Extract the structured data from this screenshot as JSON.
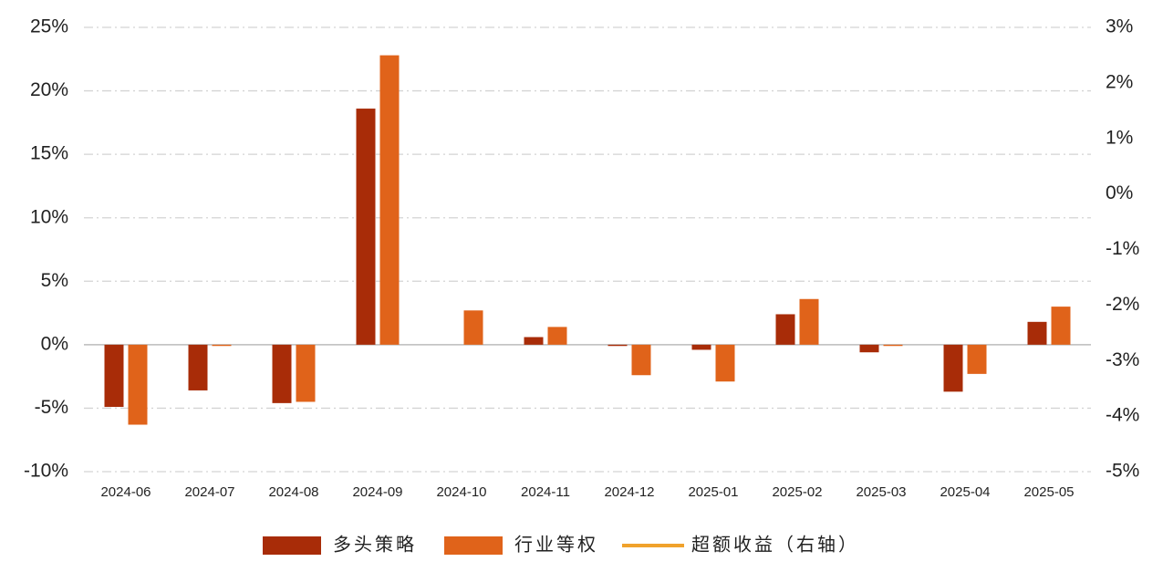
{
  "chart_data": {
    "type": "bar",
    "categories": [
      "2024-06",
      "2024-07",
      "2024-08",
      "2024-09",
      "2024-10",
      "2024-11",
      "2024-12",
      "2025-01",
      "2025-02",
      "2025-03",
      "2025-04",
      "2025-05"
    ],
    "series": [
      {
        "name": "多头策略",
        "color": "#a82c08",
        "values": [
          -4.9,
          -3.6,
          -4.6,
          18.6,
          0,
          0.6,
          -0.1,
          -0.4,
          2.4,
          -0.6,
          -3.7,
          1.8
        ]
      },
      {
        "name": "行业等权",
        "color": "#e0631a",
        "values": [
          -6.3,
          -0.1,
          -4.5,
          22.8,
          2.7,
          1.4,
          -2.4,
          -2.9,
          3.6,
          -0.1,
          -2.3,
          3.0
        ]
      },
      {
        "name": "超额收益（右轴）",
        "type": "line",
        "axis": "y2",
        "color": "#f0a22c",
        "values": [
          null,
          null,
          null,
          null,
          null,
          null,
          null,
          null,
          null,
          null,
          null,
          null
        ]
      }
    ],
    "ylim": [
      -10,
      25
    ],
    "yticks": [
      {
        "value": -10,
        "label": "-10%"
      },
      {
        "value": -5,
        "label": "-5%"
      },
      {
        "value": 0,
        "label": "0%"
      },
      {
        "value": 5,
        "label": "5%"
      },
      {
        "value": 10,
        "label": "10%"
      },
      {
        "value": 15,
        "label": "15%"
      },
      {
        "value": 20,
        "label": "20%"
      },
      {
        "value": 25,
        "label": "25%"
      }
    ],
    "y2lim": [
      -5,
      3
    ],
    "y2ticks": [
      {
        "value": -5,
        "label": "-5%"
      },
      {
        "value": -4,
        "label": "-4%"
      },
      {
        "value": -3,
        "label": "-3%"
      },
      {
        "value": -2,
        "label": "-2%"
      },
      {
        "value": -1,
        "label": "-1%"
      },
      {
        "value": 0,
        "label": "0%"
      },
      {
        "value": 1,
        "label": "1%"
      },
      {
        "value": 2,
        "label": "2%"
      },
      {
        "value": 3,
        "label": "3%"
      }
    ],
    "grid": true,
    "legend": "bottom"
  }
}
